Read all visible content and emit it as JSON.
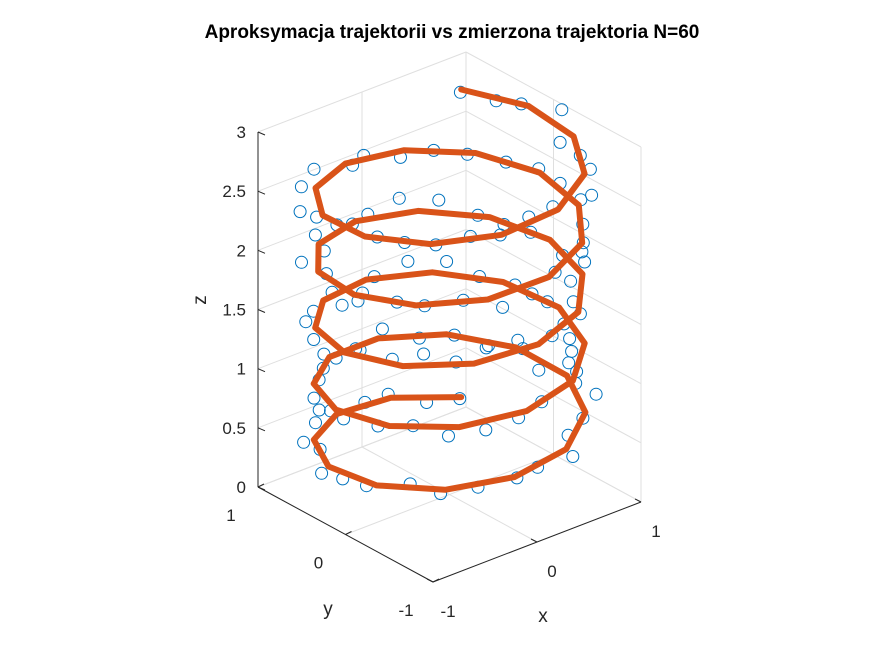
{
  "chart_data": {
    "type": "scatter",
    "title": "Aproksymacja trajektorii vs zmierzona trajektoria N=60",
    "xlabel": "x",
    "ylabel": "y",
    "zlabel": "z",
    "xlim": [
      -1,
      1
    ],
    "ylim": [
      -1,
      1
    ],
    "zlim": [
      0,
      3
    ],
    "xticks": [
      "-1",
      "0",
      "1"
    ],
    "yticks": [
      "-1",
      "0",
      "1"
    ],
    "zticks": [
      "0",
      "0.5",
      "1",
      "1.5",
      "2",
      "2.5",
      "3"
    ],
    "grid": true,
    "view": "3d",
    "helix": {
      "turns": 5,
      "radius": 1,
      "z_start": 0.3,
      "z_end": 2.9,
      "phase_start_deg": 45
    },
    "series": [
      {
        "type": "scatter",
        "marker": "circle-open",
        "color": "#0072BD",
        "points": 120,
        "note_noise": 0.12
      },
      {
        "type": "line",
        "color": "#D95319",
        "line_width": 6,
        "approximation_points": 60
      }
    ]
  }
}
